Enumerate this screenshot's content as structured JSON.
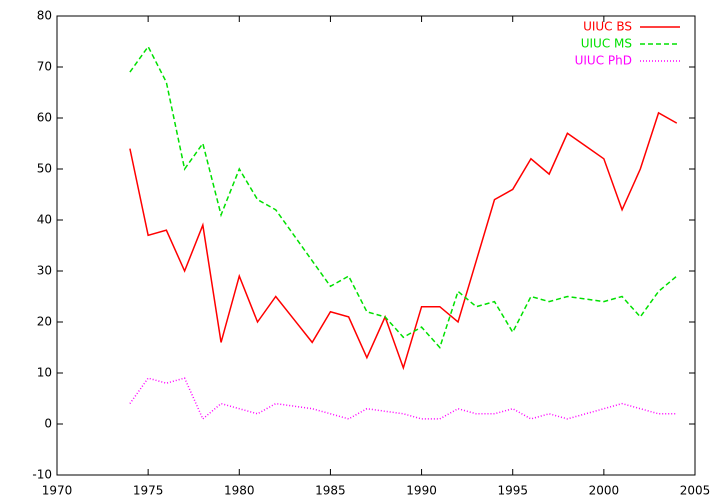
{
  "chart_data": {
    "type": "line",
    "x": [
      1974,
      1975,
      1976,
      1977,
      1978,
      1979,
      1980,
      1981,
      1982,
      1983,
      1984,
      1985,
      1986,
      1987,
      1988,
      1989,
      1990,
      1991,
      1992,
      1993,
      1994,
      1995,
      1996,
      1997,
      1998,
      1999,
      2000,
      2001,
      2002,
      2003,
      2004
    ],
    "series": [
      {
        "name": "UIUC BS",
        "color": "#ff0000",
        "style": "solid",
        "values": [
          54,
          37,
          38,
          30,
          39,
          16,
          29,
          20,
          25,
          20.5,
          16,
          22,
          21,
          13,
          21,
          11,
          23,
          23,
          20,
          32,
          44,
          46,
          52,
          49,
          57,
          54.5,
          52,
          42,
          50,
          61,
          59
        ]
      },
      {
        "name": "UIUC MS",
        "color": "#00e000",
        "style": "dashed",
        "values": [
          69,
          74,
          67,
          50,
          55,
          41,
          50,
          44,
          42,
          37,
          32,
          27,
          29,
          22,
          21,
          17,
          19,
          15,
          26,
          23,
          24,
          18,
          25,
          24,
          25,
          24.5,
          24,
          25,
          21,
          26,
          29
        ]
      },
      {
        "name": "UIUC PhD",
        "color": "#ff00ff",
        "style": "dotted",
        "values": [
          4,
          9,
          8,
          9,
          1,
          4,
          3,
          2,
          4,
          3.5,
          3,
          2,
          1,
          3,
          2.5,
          2,
          1,
          1,
          3,
          2,
          2,
          3,
          1,
          2,
          1,
          2,
          3,
          4,
          3,
          2,
          2
        ]
      }
    ],
    "xlim": [
      1970,
      2005
    ],
    "xticks": [
      1970,
      1975,
      1980,
      1985,
      1990,
      1995,
      2000,
      2005
    ],
    "ylim": [
      -10,
      80
    ],
    "yticks": [
      -10,
      0,
      10,
      20,
      30,
      40,
      50,
      60,
      70,
      80
    ],
    "legend": "top-right"
  }
}
